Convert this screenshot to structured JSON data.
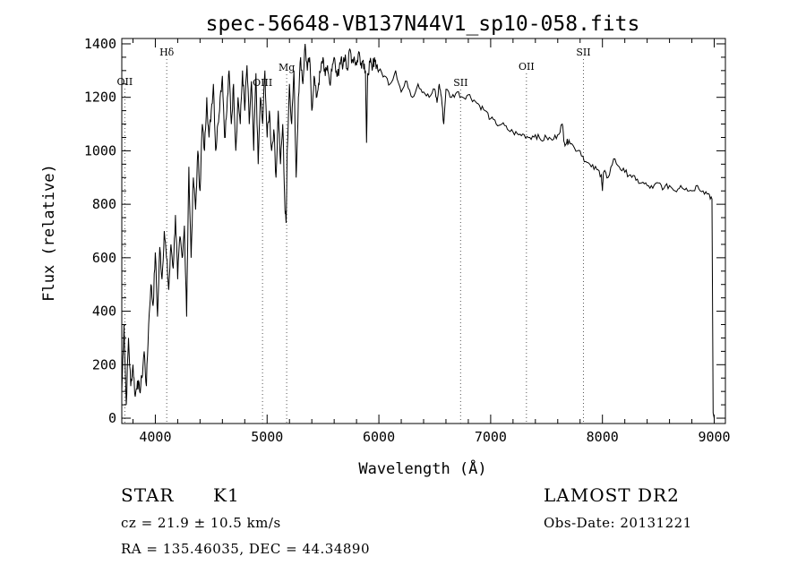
{
  "chart_data": {
    "type": "line",
    "title": "spec-56648-VB137N44V1_sp10-058.fits",
    "xlabel": "Wavelength (Å)",
    "ylabel": "Flux (relative)",
    "xlim": [
      3700,
      9100
    ],
    "ylim": [
      -20,
      1420
    ],
    "xticks": [
      4000,
      5000,
      6000,
      7000,
      8000,
      9000
    ],
    "yticks": [
      0,
      200,
      400,
      600,
      800,
      1000,
      1200,
      1400
    ],
    "grid": false,
    "legend": "none",
    "line_color": "#000000",
    "series": [
      {
        "x": [
          3700,
          3720,
          3740,
          3760,
          3780,
          3800,
          3820,
          3840,
          3860,
          3880,
          3900,
          3920,
          3940,
          3960,
          3980,
          4000,
          4020,
          4040,
          4060,
          4080,
          4100,
          4120,
          4140,
          4160,
          4180,
          4200,
          4220,
          4240,
          4260,
          4280,
          4300,
          4320,
          4340,
          4360,
          4380,
          4400,
          4420,
          4440,
          4460,
          4480,
          4500,
          4520,
          4540,
          4560,
          4580,
          4600,
          4620,
          4640,
          4660,
          4680,
          4700,
          4720,
          4740,
          4760,
          4780,
          4800,
          4820,
          4840,
          4860,
          4880,
          4900,
          4920,
          4940,
          4960,
          4980,
          5000,
          5020,
          5040,
          5060,
          5080,
          5100,
          5120,
          5140,
          5160,
          5170,
          5180,
          5200,
          5220,
          5240,
          5260,
          5280,
          5300,
          5320,
          5340,
          5360,
          5380,
          5400,
          5420,
          5440,
          5460,
          5480,
          5500,
          5520,
          5540,
          5560,
          5580,
          5600,
          5620,
          5640,
          5660,
          5680,
          5700,
          5720,
          5740,
          5760,
          5780,
          5800,
          5820,
          5840,
          5860,
          5880,
          5890,
          5900,
          5920,
          5940,
          5960,
          5980,
          6000,
          6050,
          6100,
          6150,
          6200,
          6250,
          6300,
          6350,
          6400,
          6450,
          6500,
          6520,
          6540,
          6560,
          6580,
          6600,
          6650,
          6700,
          6750,
          6800,
          6850,
          6900,
          6950,
          7000,
          7050,
          7100,
          7150,
          7200,
          7250,
          7300,
          7350,
          7400,
          7450,
          7500,
          7550,
          7600,
          7640,
          7660,
          7680,
          7700,
          7750,
          7800,
          7850,
          7900,
          7950,
          7990,
          8000,
          8010,
          8050,
          8100,
          8150,
          8200,
          8250,
          8300,
          8350,
          8400,
          8450,
          8500,
          8550,
          8600,
          8650,
          8700,
          8750,
          8800,
          8850,
          8900,
          8950,
          8980,
          8990,
          9000
        ],
        "y": [
          100,
          350,
          50,
          300,
          120,
          200,
          80,
          140,
          100,
          150,
          250,
          120,
          350,
          500,
          420,
          620,
          380,
          640,
          520,
          700,
          600,
          480,
          650,
          560,
          760,
          520,
          680,
          600,
          720,
          380,
          940,
          600,
          900,
          780,
          1000,
          850,
          1100,
          1000,
          1200,
          1050,
          1150,
          1250,
          1000,
          1100,
          1200,
          1280,
          1050,
          1150,
          1300,
          1100,
          1250,
          1000,
          1200,
          1100,
          1300,
          1150,
          1320,
          1100,
          1260,
          1000,
          1290,
          950,
          1200,
          1100,
          1300,
          1050,
          1150,
          1000,
          1080,
          900,
          1150,
          950,
          1100,
          780,
          730,
          1000,
          1250,
          1100,
          1300,
          900,
          1200,
          1350,
          1250,
          1400,
          1300,
          1350,
          1150,
          1280,
          1200,
          1250,
          1300,
          1350,
          1280,
          1320,
          1250,
          1300,
          1350,
          1300,
          1280,
          1340,
          1320,
          1360,
          1300,
          1380,
          1340,
          1350,
          1320,
          1370,
          1330,
          1340,
          1300,
          1030,
          1290,
          1330,
          1300,
          1350,
          1320,
          1300,
          1280,
          1250,
          1300,
          1220,
          1260,
          1200,
          1250,
          1220,
          1200,
          1230,
          1180,
          1250,
          1200,
          1100,
          1230,
          1200,
          1220,
          1200,
          1210,
          1190,
          1170,
          1150,
          1120,
          1100,
          1100,
          1080,
          1070,
          1060,
          1060,
          1050,
          1060,
          1040,
          1050,
          1040,
          1060,
          1100,
          1030,
          1030,
          1040,
          1010,
          1000,
          960,
          940,
          930,
          910,
          850,
          920,
          900,
          970,
          940,
          920,
          910,
          890,
          880,
          870,
          860,
          880,
          860,
          870,
          850,
          870,
          860,
          850,
          870,
          850,
          840,
          820,
          20,
          0
        ]
      }
    ],
    "line_markers": [
      {
        "label": "OII",
        "x": 3727
      },
      {
        "label": "Hδ",
        "x": 4102
      },
      {
        "label": "OIII",
        "x": 4959
      },
      {
        "label": "Mg",
        "x": 5175
      },
      {
        "label": "SII",
        "x": 6731
      },
      {
        "label": "OII",
        "x": 7320
      },
      {
        "label": "SII",
        "x": 7830
      }
    ]
  },
  "info": {
    "object_class": "STAR",
    "subclass": "K1",
    "survey": "LAMOST DR2",
    "velocity": "cz = 21.9 ± 10.5 km/s",
    "obs_date": "Obs-Date: 20131221",
    "coords": "RA = 135.46035, DEC =  44.34890"
  }
}
